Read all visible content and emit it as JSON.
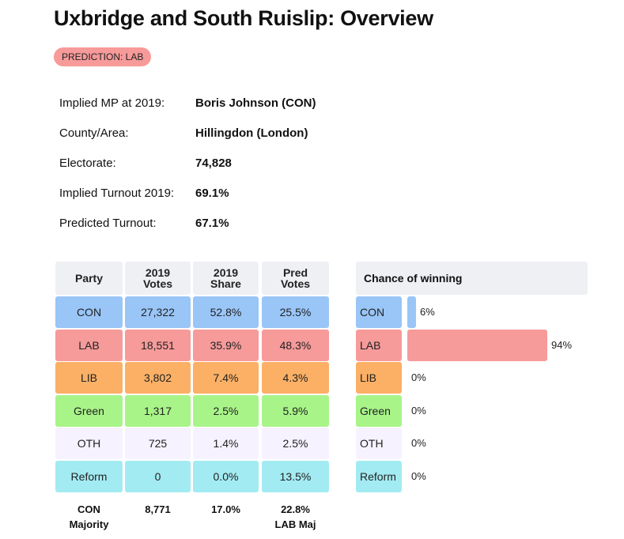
{
  "page": {
    "title": "Uxbridge and South Ruislip: Overview",
    "badge": {
      "text": "PREDICTION: LAB",
      "color": "#f79a9a"
    }
  },
  "info": [
    {
      "label": "Implied MP at 2019:",
      "value": "Boris Johnson  (CON)"
    },
    {
      "label": "County/Area:",
      "value": "Hillingdon (London)"
    },
    {
      "label": "Electorate:",
      "value": "74,828"
    },
    {
      "label": "Implied Turnout 2019:",
      "value": "69.1%"
    },
    {
      "label": "Predicted Turnout:",
      "value": "67.1%"
    }
  ],
  "table": {
    "headers": [
      "Party",
      "2019\nVotes",
      "2019\nShare",
      "Pred\nVotes"
    ],
    "rows": [
      {
        "party": "CON",
        "votes": "27,322",
        "share": "52.8%",
        "pred": "25.5%",
        "color": "#99c5f7"
      },
      {
        "party": "LAB",
        "votes": "18,551",
        "share": "35.9%",
        "pred": "48.3%",
        "color": "#f79a9a"
      },
      {
        "party": "LIB",
        "votes": "3,802",
        "share": "7.4%",
        "pred": "4.3%",
        "color": "#fbb066"
      },
      {
        "party": "Green",
        "votes": "1,317",
        "share": "2.5%",
        "pred": "5.9%",
        "color": "#a8f489"
      },
      {
        "party": "OTH",
        "votes": "725",
        "share": "1.4%",
        "pred": "2.5%",
        "color": "#f6f2ff"
      },
      {
        "party": "Reform",
        "votes": "0",
        "share": "0.0%",
        "pred": "13.5%",
        "color": "#a3ebf2"
      }
    ],
    "footer": [
      "CON\nMajority",
      "8,771",
      "17.0%",
      "22.8%\nLAB Maj"
    ]
  },
  "chance": {
    "title": "Chance of winning",
    "rows": [
      {
        "party": "CON",
        "value": 6,
        "label": "6%"
      },
      {
        "party": "LAB",
        "value": 94,
        "label": "94%"
      },
      {
        "party": "LIB",
        "value": 0,
        "label": "0%"
      },
      {
        "party": "Green",
        "value": 0,
        "label": "0%"
      },
      {
        "party": "OTH",
        "value": 0,
        "label": "0%"
      },
      {
        "party": "Reform",
        "value": 0,
        "label": "0%"
      }
    ]
  }
}
